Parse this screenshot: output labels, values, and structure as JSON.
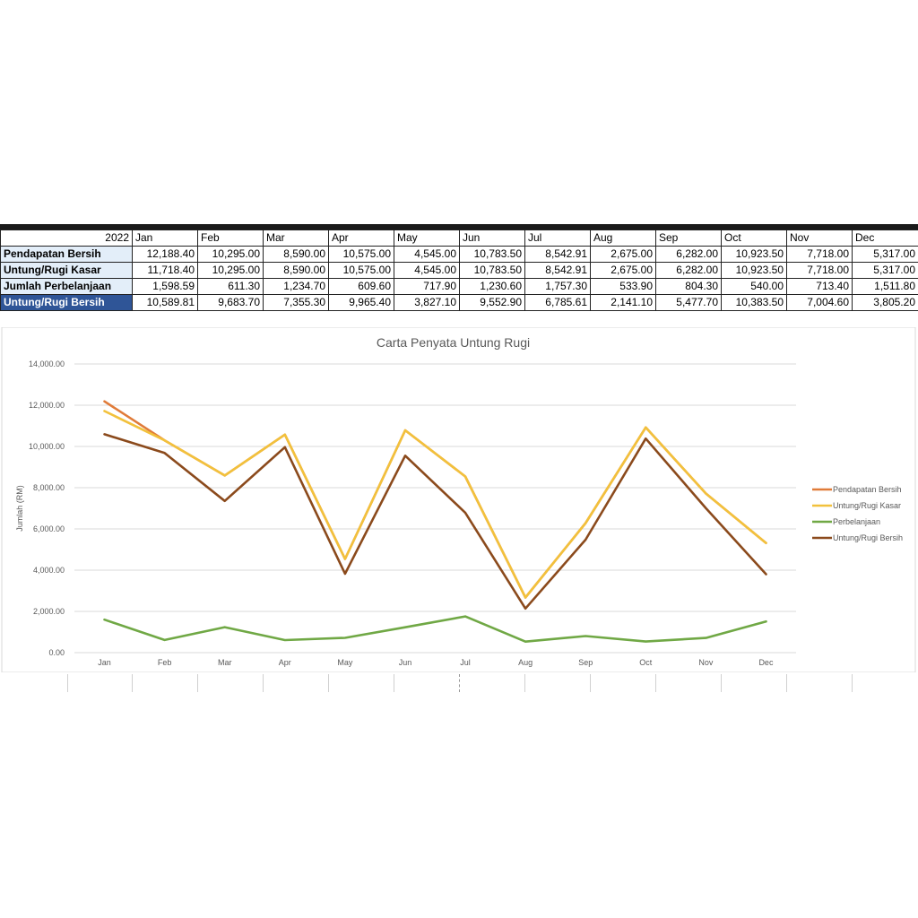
{
  "table": {
    "year": "2022",
    "months": [
      "Jan",
      "Feb",
      "Mar",
      "Apr",
      "May",
      "Jun",
      "Jul",
      "Aug",
      "Sep",
      "Oct",
      "Nov",
      "Dec"
    ],
    "rows": [
      {
        "label": "Pendapatan Bersih",
        "values": [
          "12,188.40",
          "10,295.00",
          "8,590.00",
          "10,575.00",
          "4,545.00",
          "10,783.50",
          "8,542.91",
          "2,675.00",
          "6,282.00",
          "10,923.50",
          "7,718.00",
          "5,317.00"
        ]
      },
      {
        "label": "Untung/Rugi Kasar",
        "values": [
          "11,718.40",
          "10,295.00",
          "8,590.00",
          "10,575.00",
          "4,545.00",
          "10,783.50",
          "8,542.91",
          "2,675.00",
          "6,282.00",
          "10,923.50",
          "7,718.00",
          "5,317.00"
        ]
      },
      {
        "label": "Jumlah Perbelanjaan",
        "values": [
          "1,598.59",
          "611.30",
          "1,234.70",
          "609.60",
          "717.90",
          "1,230.60",
          "1,757.30",
          "533.90",
          "804.30",
          "540.00",
          "713.40",
          "1,511.80"
        ]
      },
      {
        "label": "Untung/Rugi Bersih",
        "values": [
          "10,589.81",
          "9,683.70",
          "7,355.30",
          "9,965.40",
          "3,827.10",
          "9,552.90",
          "6,785.61",
          "2,141.10",
          "5,477.70",
          "10,383.50",
          "7,004.60",
          "3,805.20"
        ]
      }
    ]
  },
  "chart_data": {
    "type": "line",
    "title": "Carta Penyata Untung Rugi",
    "xlabel": "",
    "ylabel": "Jumlah (RM)",
    "categories": [
      "Jan",
      "Feb",
      "Mar",
      "Apr",
      "May",
      "Jun",
      "Jul",
      "Aug",
      "Sep",
      "Oct",
      "Nov",
      "Dec"
    ],
    "ylim": [
      0,
      14000
    ],
    "yticks": [
      "0.00",
      "2,000.00",
      "4,000.00",
      "6,000.00",
      "8,000.00",
      "10,000.00",
      "12,000.00",
      "14,000.00"
    ],
    "grid": true,
    "legend": "right",
    "series": [
      {
        "name": "Pendapatan Bersih",
        "color": "#e07b39",
        "values": [
          12188.4,
          10295.0,
          8590.0,
          10575.0,
          4545.0,
          10783.5,
          8542.91,
          2675.0,
          6282.0,
          10923.5,
          7718.0,
          5317.0
        ]
      },
      {
        "name": "Untung/Rugi Kasar",
        "color": "#f2c13c",
        "values": [
          11718.4,
          10295.0,
          8590.0,
          10575.0,
          4545.0,
          10783.5,
          8542.91,
          2675.0,
          6282.0,
          10923.5,
          7718.0,
          5317.0
        ]
      },
      {
        "name": "Perbelanjaan",
        "color": "#70a845",
        "values": [
          1598.59,
          611.3,
          1234.7,
          609.6,
          717.9,
          1230.6,
          1757.3,
          533.9,
          804.3,
          540.0,
          713.4,
          1511.8
        ]
      },
      {
        "name": "Untung/Rugi Bersih",
        "color": "#8b4a1c",
        "values": [
          10589.81,
          9683.7,
          7355.3,
          9965.4,
          3827.1,
          9552.9,
          6785.61,
          2141.1,
          5477.7,
          10383.5,
          7004.6,
          3805.2
        ]
      }
    ]
  }
}
